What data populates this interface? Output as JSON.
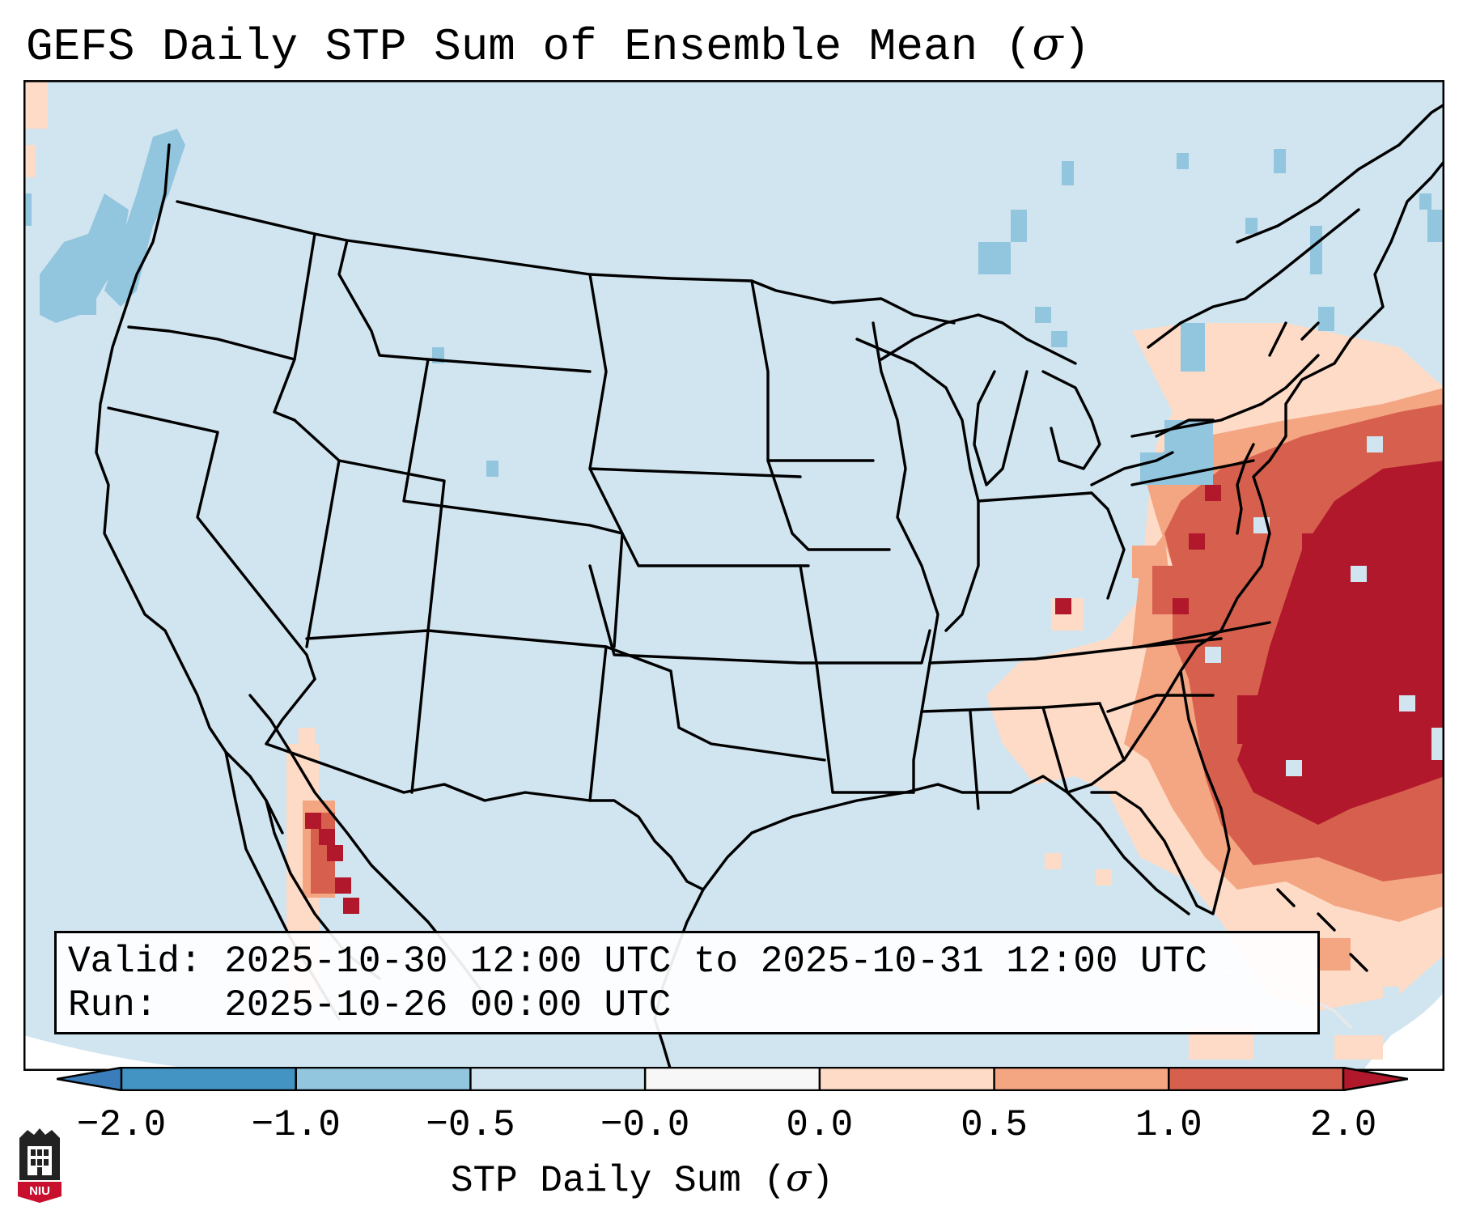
{
  "title": {
    "text": "GEFS Daily STP Sum of Ensemble Mean (",
    "symbol": "σ",
    "close": ")"
  },
  "info": {
    "valid_label": "Valid:",
    "valid_value": "2025-10-30 12:00 UTC to 2025-10-31 12:00 UTC",
    "run_label": "Run:",
    "run_value": "2025-10-26 00:00 UTC"
  },
  "colorbar": {
    "label_text": "STP Daily Sum (",
    "label_symbol": "σ",
    "label_close": ")",
    "ticks": [
      "−2.0",
      "−1.0",
      "−0.5",
      "−0.0",
      "0.0",
      "0.5",
      "1.0",
      "2.0"
    ],
    "colors": [
      "#3b7dbb",
      "#8fbfe0",
      "#cfe4f0",
      "#f9f9f9",
      "#fbd4c0",
      "#ee9a7b",
      "#d2594d",
      "#b2182b"
    ]
  },
  "logo": {
    "text": "NIU"
  },
  "map_colors": {
    "ocean_neutral": "#d1e5f0",
    "neg_light": "#92c5de",
    "pos_light": "#fddbc7",
    "pos_mid": "#f4a582",
    "pos_high": "#d6604d",
    "pos_max": "#b2182b"
  }
}
